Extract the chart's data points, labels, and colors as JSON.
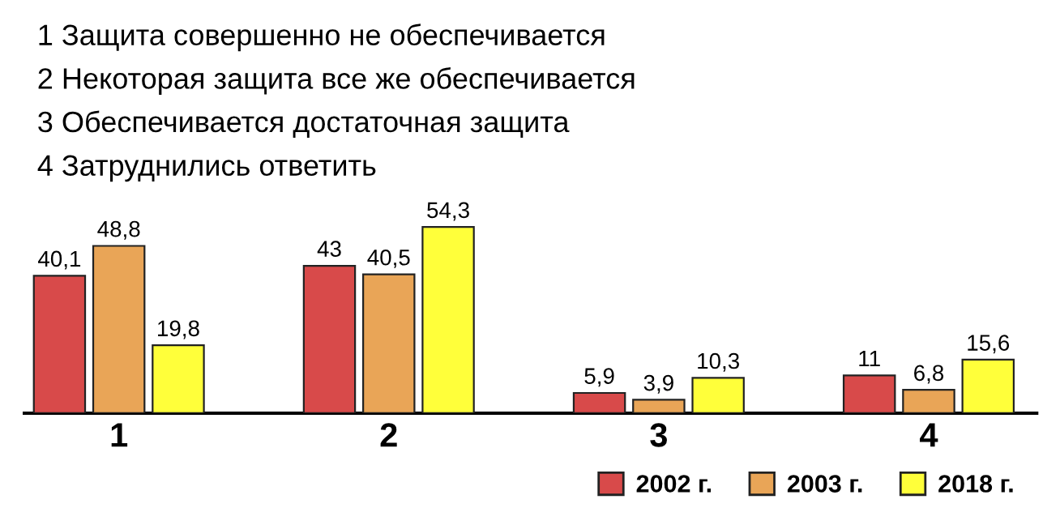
{
  "chart_data": {
    "type": "bar",
    "annotations": [
      "1 Защита совершенно не обеспечивается",
      "2 Некоторая защита все же обеспечивается",
      "3 Обеспечивается достаточная защита",
      "4 Затруднились ответить"
    ],
    "categories": [
      "1",
      "2",
      "3",
      "4"
    ],
    "series": [
      {
        "name": "2002 г.",
        "color": "#d84a4a",
        "values": [
          40.1,
          43,
          5.9,
          11
        ],
        "value_labels": [
          "40,1",
          "43",
          "5,9",
          "11"
        ]
      },
      {
        "name": "2003 г.",
        "color": "#e9a557",
        "values": [
          48.8,
          40.5,
          3.9,
          6.8
        ],
        "value_labels": [
          "48,8",
          "40,5",
          "3,9",
          "6,8"
        ]
      },
      {
        "name": "2018 г.",
        "color": "#ffff3a",
        "values": [
          19.8,
          54.3,
          10.3,
          15.6
        ],
        "value_labels": [
          "19,8",
          "54,3",
          "10,3",
          "15,6"
        ]
      }
    ],
    "grid": false,
    "legend": "bottom right"
  }
}
